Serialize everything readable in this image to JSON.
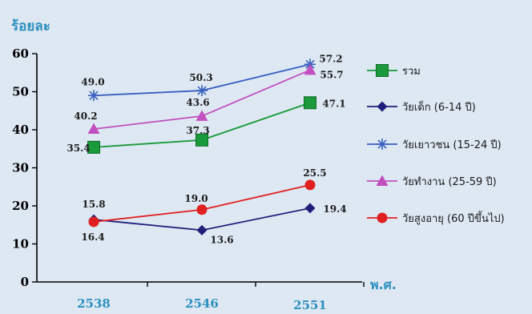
{
  "chart_data": {
    "type": "line",
    "ylabel": "ร้อยละ",
    "xlabel": "พ.ศ.",
    "categories": [
      "2538",
      "2546",
      "2551"
    ],
    "ylim": [
      0,
      60
    ],
    "yticks": [
      0,
      10,
      20,
      30,
      40,
      50,
      60
    ],
    "grid": false,
    "legend_position": "right",
    "series": [
      {
        "name": "รวม",
        "values": [
          35.4,
          37.3,
          47.1
        ],
        "color": "#1a9a3a",
        "marker": "square"
      },
      {
        "name": "วัยเด็ก (6-14 ปี)",
        "values": [
          16.4,
          13.6,
          19.4
        ],
        "color": "#1f1f7a",
        "marker": "diamond"
      },
      {
        "name": "วัยเยาวชน (15-24 ปี)",
        "values": [
          49.0,
          50.3,
          57.2
        ],
        "color": "#3a5fc0",
        "marker": "asterisk"
      },
      {
        "name": "วัยทำงาน (25-59 ปี)",
        "values": [
          40.2,
          43.6,
          55.7
        ],
        "color": "#c24fbf",
        "marker": "triangle"
      },
      {
        "name": "วัยสูงอายุ (60 ปีขึ้นไป)",
        "values": [
          15.8,
          19.0,
          25.5
        ],
        "color": "#e02020",
        "marker": "circle"
      }
    ],
    "data_labels": [
      [
        "35.4",
        "37.3",
        "47.1"
      ],
      [
        "16.4",
        "13.6",
        "19.4"
      ],
      [
        "49.0",
        "50.3",
        "57.2"
      ],
      [
        "40.2",
        "43.6",
        "55.7"
      ],
      [
        "15.8",
        "19.0",
        "25.5"
      ]
    ]
  }
}
